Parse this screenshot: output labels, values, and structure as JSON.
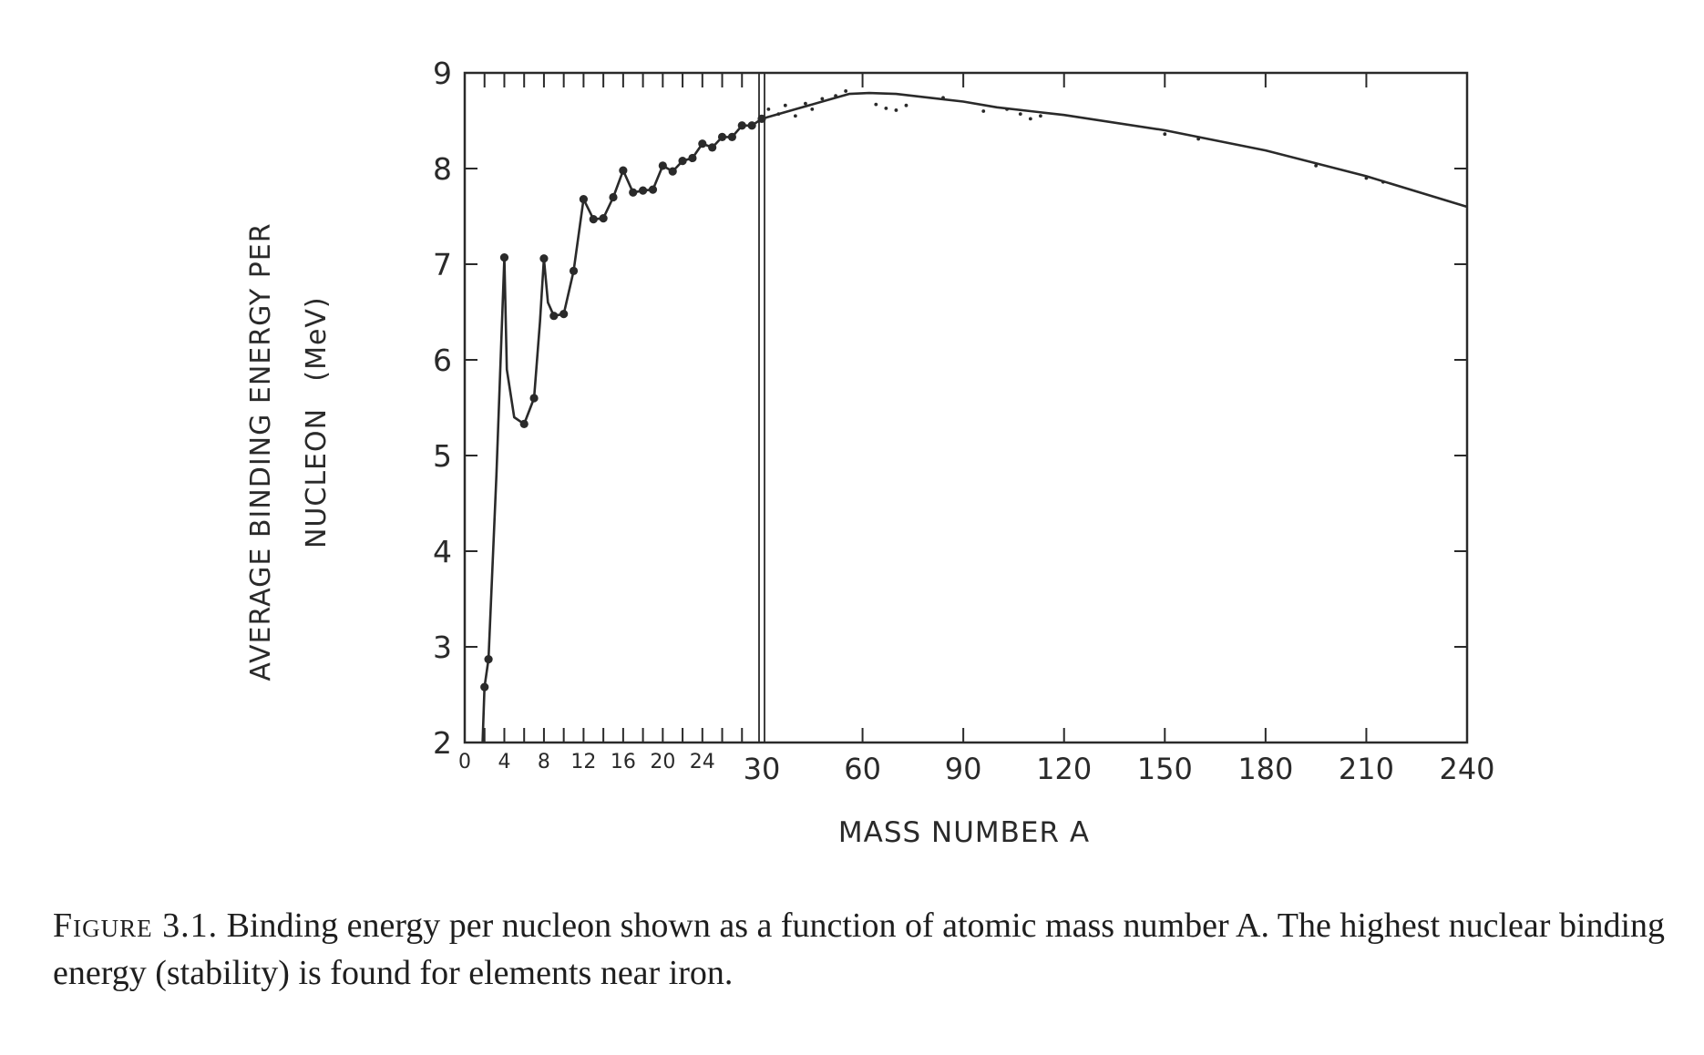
{
  "chart_data": {
    "type": "line",
    "xlabel": "MASS NUMBER A",
    "ylabel_line1": "AVERAGE BINDING ENERGY PER",
    "ylabel_line2": "NUCLEON",
    "ylabel_unit": "(MeV)",
    "ylim": [
      2,
      9
    ],
    "yticks": [
      2,
      3,
      4,
      5,
      6,
      7,
      8,
      9
    ],
    "x_axis_segments": [
      {
        "range": [
          0,
          30
        ],
        "tick_step": 2,
        "labels": [
          "0",
          "4",
          "8",
          "12",
          "16",
          "20",
          "24",
          "30"
        ],
        "label_values": [
          0,
          4,
          8,
          12,
          16,
          20,
          24,
          30
        ]
      },
      {
        "range": [
          30,
          240
        ],
        "tick_step": 30,
        "labels": [
          "30",
          "60",
          "90",
          "120",
          "150",
          "180",
          "210",
          "240"
        ],
        "label_values": [
          30,
          60,
          90,
          120,
          150,
          180,
          210,
          240
        ]
      }
    ],
    "grid": false,
    "light_nuclei_points": [
      {
        "x": 2,
        "y": 2.58
      },
      {
        "x": 2.4,
        "y": 2.87
      },
      {
        "x": 4,
        "y": 7.07
      },
      {
        "x": 6,
        "y": 5.33
      },
      {
        "x": 7,
        "y": 5.6
      },
      {
        "x": 8,
        "y": 7.06
      },
      {
        "x": 9,
        "y": 6.46
      },
      {
        "x": 10,
        "y": 6.48
      },
      {
        "x": 11,
        "y": 6.93
      },
      {
        "x": 12,
        "y": 7.68
      },
      {
        "x": 13,
        "y": 7.47
      },
      {
        "x": 14,
        "y": 7.48
      },
      {
        "x": 15,
        "y": 7.7
      },
      {
        "x": 16,
        "y": 7.98
      },
      {
        "x": 17,
        "y": 7.75
      },
      {
        "x": 18,
        "y": 7.77
      },
      {
        "x": 19,
        "y": 7.78
      },
      {
        "x": 20,
        "y": 8.03
      },
      {
        "x": 21,
        "y": 7.97
      },
      {
        "x": 22,
        "y": 8.08
      },
      {
        "x": 23,
        "y": 8.11
      },
      {
        "x": 24,
        "y": 8.26
      },
      {
        "x": 25,
        "y": 8.22
      },
      {
        "x": 26,
        "y": 8.33
      },
      {
        "x": 27,
        "y": 8.33
      },
      {
        "x": 28,
        "y": 8.45
      },
      {
        "x": 29,
        "y": 8.45
      },
      {
        "x": 30,
        "y": 8.52
      }
    ],
    "light_nuclei_curve": [
      {
        "x": 1.8,
        "y": 2.0
      },
      {
        "x": 2,
        "y": 2.58
      },
      {
        "x": 2.4,
        "y": 2.87
      },
      {
        "x": 3.2,
        "y": 4.8
      },
      {
        "x": 4,
        "y": 7.07
      },
      {
        "x": 4.25,
        "y": 5.9
      },
      {
        "x": 5,
        "y": 5.4
      },
      {
        "x": 6,
        "y": 5.33
      },
      {
        "x": 7,
        "y": 5.6
      },
      {
        "x": 7.6,
        "y": 6.4
      },
      {
        "x": 8,
        "y": 7.06
      },
      {
        "x": 8.4,
        "y": 6.6
      },
      {
        "x": 9,
        "y": 6.46
      },
      {
        "x": 10,
        "y": 6.48
      },
      {
        "x": 11,
        "y": 6.93
      },
      {
        "x": 12,
        "y": 7.68
      },
      {
        "x": 13,
        "y": 7.47
      },
      {
        "x": 14,
        "y": 7.48
      },
      {
        "x": 15,
        "y": 7.7
      },
      {
        "x": 16,
        "y": 7.98
      },
      {
        "x": 17,
        "y": 7.75
      },
      {
        "x": 18,
        "y": 7.77
      },
      {
        "x": 19,
        "y": 7.78
      },
      {
        "x": 20,
        "y": 8.03
      },
      {
        "x": 21,
        "y": 7.97
      },
      {
        "x": 22,
        "y": 8.08
      },
      {
        "x": 23,
        "y": 8.11
      },
      {
        "x": 24,
        "y": 8.26
      },
      {
        "x": 25,
        "y": 8.22
      },
      {
        "x": 26,
        "y": 8.33
      },
      {
        "x": 27,
        "y": 8.33
      },
      {
        "x": 28,
        "y": 8.45
      },
      {
        "x": 29,
        "y": 8.45
      },
      {
        "x": 30,
        "y": 8.52
      }
    ],
    "heavy_nuclei_curve": [
      {
        "x": 30,
        "y": 8.52
      },
      {
        "x": 40,
        "y": 8.62
      },
      {
        "x": 50,
        "y": 8.72
      },
      {
        "x": 56,
        "y": 8.78
      },
      {
        "x": 62,
        "y": 8.79
      },
      {
        "x": 70,
        "y": 8.78
      },
      {
        "x": 80,
        "y": 8.74
      },
      {
        "x": 90,
        "y": 8.7
      },
      {
        "x": 100,
        "y": 8.64
      },
      {
        "x": 120,
        "y": 8.56
      },
      {
        "x": 150,
        "y": 8.4
      },
      {
        "x": 180,
        "y": 8.19
      },
      {
        "x": 210,
        "y": 7.92
      },
      {
        "x": 240,
        "y": 7.6
      }
    ],
    "heavy_nuclei_scatter": [
      {
        "x": 32,
        "y": 8.62
      },
      {
        "x": 35,
        "y": 8.57
      },
      {
        "x": 37,
        "y": 8.66
      },
      {
        "x": 40,
        "y": 8.55
      },
      {
        "x": 43,
        "y": 8.68
      },
      {
        "x": 45,
        "y": 8.62
      },
      {
        "x": 48,
        "y": 8.73
      },
      {
        "x": 52,
        "y": 8.76
      },
      {
        "x": 55,
        "y": 8.81
      },
      {
        "x": 64,
        "y": 8.67
      },
      {
        "x": 67,
        "y": 8.63
      },
      {
        "x": 70,
        "y": 8.61
      },
      {
        "x": 73,
        "y": 8.66
      },
      {
        "x": 84,
        "y": 8.74
      },
      {
        "x": 96,
        "y": 8.6
      },
      {
        "x": 103,
        "y": 8.62
      },
      {
        "x": 107,
        "y": 8.57
      },
      {
        "x": 110,
        "y": 8.52
      },
      {
        "x": 113,
        "y": 8.55
      },
      {
        "x": 150,
        "y": 8.36
      },
      {
        "x": 160,
        "y": 8.31
      },
      {
        "x": 195,
        "y": 8.03
      },
      {
        "x": 210,
        "y": 7.9
      },
      {
        "x": 215,
        "y": 7.86
      }
    ]
  },
  "caption": {
    "label": "Figure 3.1.",
    "text": "Binding energy per nucleon shown as a function of atomic mass number A. The highest nuclear binding energy (stability) is found for elements near iron."
  },
  "colors": {
    "ink": "#2a2a2a",
    "background": "#ffffff"
  }
}
